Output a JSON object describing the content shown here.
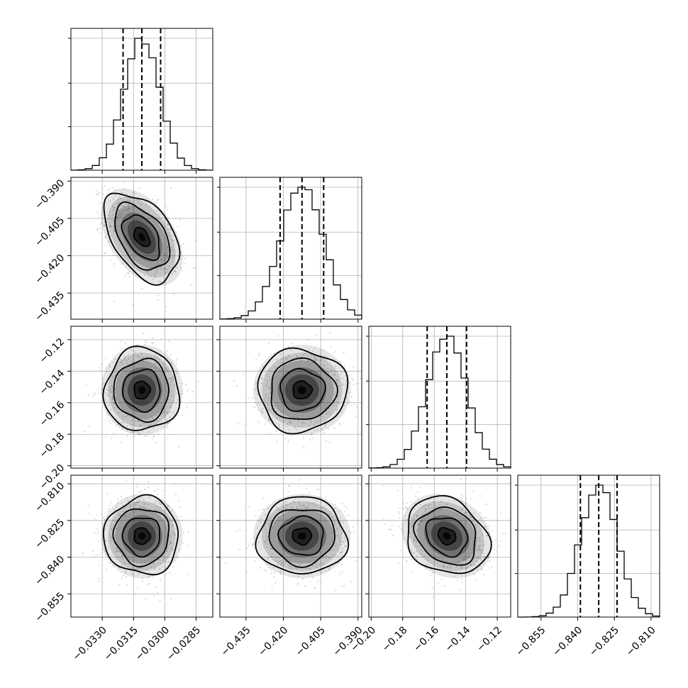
{
  "chart_data": {
    "type": "corner",
    "grid": true,
    "params": [
      {
        "mean": -0.0311,
        "sd": 0.00085,
        "range": [
          -0.0345,
          -0.0277
        ],
        "ticks": [
          -0.033,
          -0.0315,
          -0.03,
          -0.0285
        ],
        "tick_labels": [
          "−0.0330",
          "−0.0315",
          "−0.0300",
          "−0.0285"
        ],
        "quantiles": [
          -0.032,
          -0.0311,
          -0.0302
        ]
      },
      {
        "mean": -0.4125,
        "sd": 0.0085,
        "range": [
          -0.4455,
          -0.3885
        ],
        "ticks": [
          -0.435,
          -0.42,
          -0.405,
          -0.39
        ],
        "tick_labels": [
          "−0.435",
          "−0.420",
          "−0.405",
          "−0.390"
        ],
        "quantiles": [
          -0.4213,
          -0.4125,
          -0.4038
        ]
      },
      {
        "mean": -0.152,
        "sd": 0.0125,
        "range": [
          -0.2015,
          -0.1115
        ],
        "ticks": [
          -0.2,
          -0.18,
          -0.16,
          -0.14,
          -0.12
        ],
        "tick_labels": [
          "−0.20",
          "−0.18",
          "−0.16",
          "−0.14",
          "−0.12"
        ],
        "quantiles": [
          -0.1645,
          -0.152,
          -0.1395
        ]
      },
      {
        "mean": -0.8314,
        "sd": 0.0075,
        "range": [
          -0.8645,
          -0.8065
        ],
        "ticks": [
          -0.855,
          -0.84,
          -0.825,
          -0.81
        ],
        "tick_labels": [
          "−0.855",
          "−0.840",
          "−0.825",
          "−0.810"
        ],
        "quantiles": [
          -0.8389,
          -0.8314,
          -0.8239
        ]
      }
    ],
    "correlations": [
      [
        1.0,
        -0.45,
        0.0,
        0.0
      ],
      [
        -0.45,
        1.0,
        0.0,
        0.0
      ],
      [
        0.0,
        0.0,
        1.0,
        -0.2
      ],
      [
        0.0,
        0.0,
        -0.2,
        1.0
      ]
    ],
    "histogram_bins": 20,
    "contour_levels": [
      "0.5sigma",
      "1sigma",
      "1.5sigma",
      "2sigma"
    ],
    "colors": {
      "hist": "#000000",
      "density": "#000000",
      "points": "#9a9a9a",
      "grid": "#b0b0b0"
    }
  }
}
